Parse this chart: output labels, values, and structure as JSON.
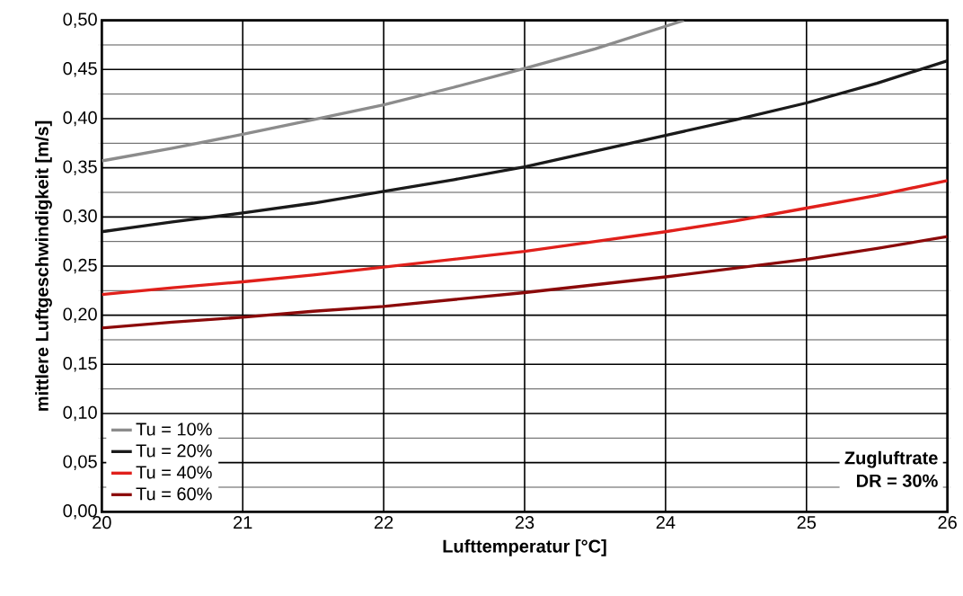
{
  "chart_data": {
    "type": "line",
    "xlabel": "Lufttemperatur [°C]",
    "ylabel": "mittlere Luftgeschwindigkeit [m/s]",
    "x": [
      20,
      20.5,
      21,
      21.5,
      22,
      22.5,
      23,
      23.5,
      24,
      24.5,
      25,
      25.5,
      26
    ],
    "series": [
      {
        "name": "Tu = 10%",
        "color": "#8c8c8c",
        "x": [
          20,
          20.5,
          21,
          21.5,
          22,
          22.5,
          23,
          23.5,
          24,
          24.13
        ],
        "values": [
          0.357,
          0.37,
          0.384,
          0.399,
          0.414,
          0.432,
          0.451,
          0.471,
          0.494,
          0.5
        ]
      },
      {
        "name": "Tu = 20%",
        "color": "#1a1a1a",
        "values": [
          0.285,
          0.295,
          0.304,
          0.314,
          0.326,
          0.338,
          0.351,
          0.367,
          0.383,
          0.399,
          0.416,
          0.436,
          0.459
        ]
      },
      {
        "name": "Tu = 40%",
        "color": "#e0201b",
        "values": [
          0.221,
          0.228,
          0.234,
          0.241,
          0.249,
          0.257,
          0.265,
          0.275,
          0.285,
          0.296,
          0.309,
          0.322,
          0.337
        ]
      },
      {
        "name": "Tu = 60%",
        "color": "#8b0a0a",
        "values": [
          0.187,
          0.193,
          0.198,
          0.204,
          0.209,
          0.216,
          0.223,
          0.231,
          0.239,
          0.248,
          0.257,
          0.268,
          0.28
        ]
      }
    ],
    "xlim": [
      20,
      26
    ],
    "ylim": [
      0,
      0.5
    ],
    "xticks": [
      20,
      21,
      22,
      23,
      24,
      25,
      26
    ],
    "yticks": [
      {
        "value": 0,
        "label": "0,00"
      },
      {
        "value": 0.05,
        "label": "0,05"
      },
      {
        "value": 0.1,
        "label": "0,10"
      },
      {
        "value": 0.15,
        "label": "0,15"
      },
      {
        "value": 0.2,
        "label": "0,20"
      },
      {
        "value": 0.25,
        "label": "0,25"
      },
      {
        "value": 0.3,
        "label": "0,30"
      },
      {
        "value": 0.35,
        "label": "0,35"
      },
      {
        "value": 0.4,
        "label": "0,40"
      },
      {
        "value": 0.45,
        "label": "0,45"
      },
      {
        "value": 0.5,
        "label": "0,50"
      }
    ],
    "annotations": [
      "Zugluftrate",
      "DR = 30%"
    ],
    "grid": true,
    "legend": "bottom left",
    "marker": "none",
    "line_style": "solid"
  }
}
